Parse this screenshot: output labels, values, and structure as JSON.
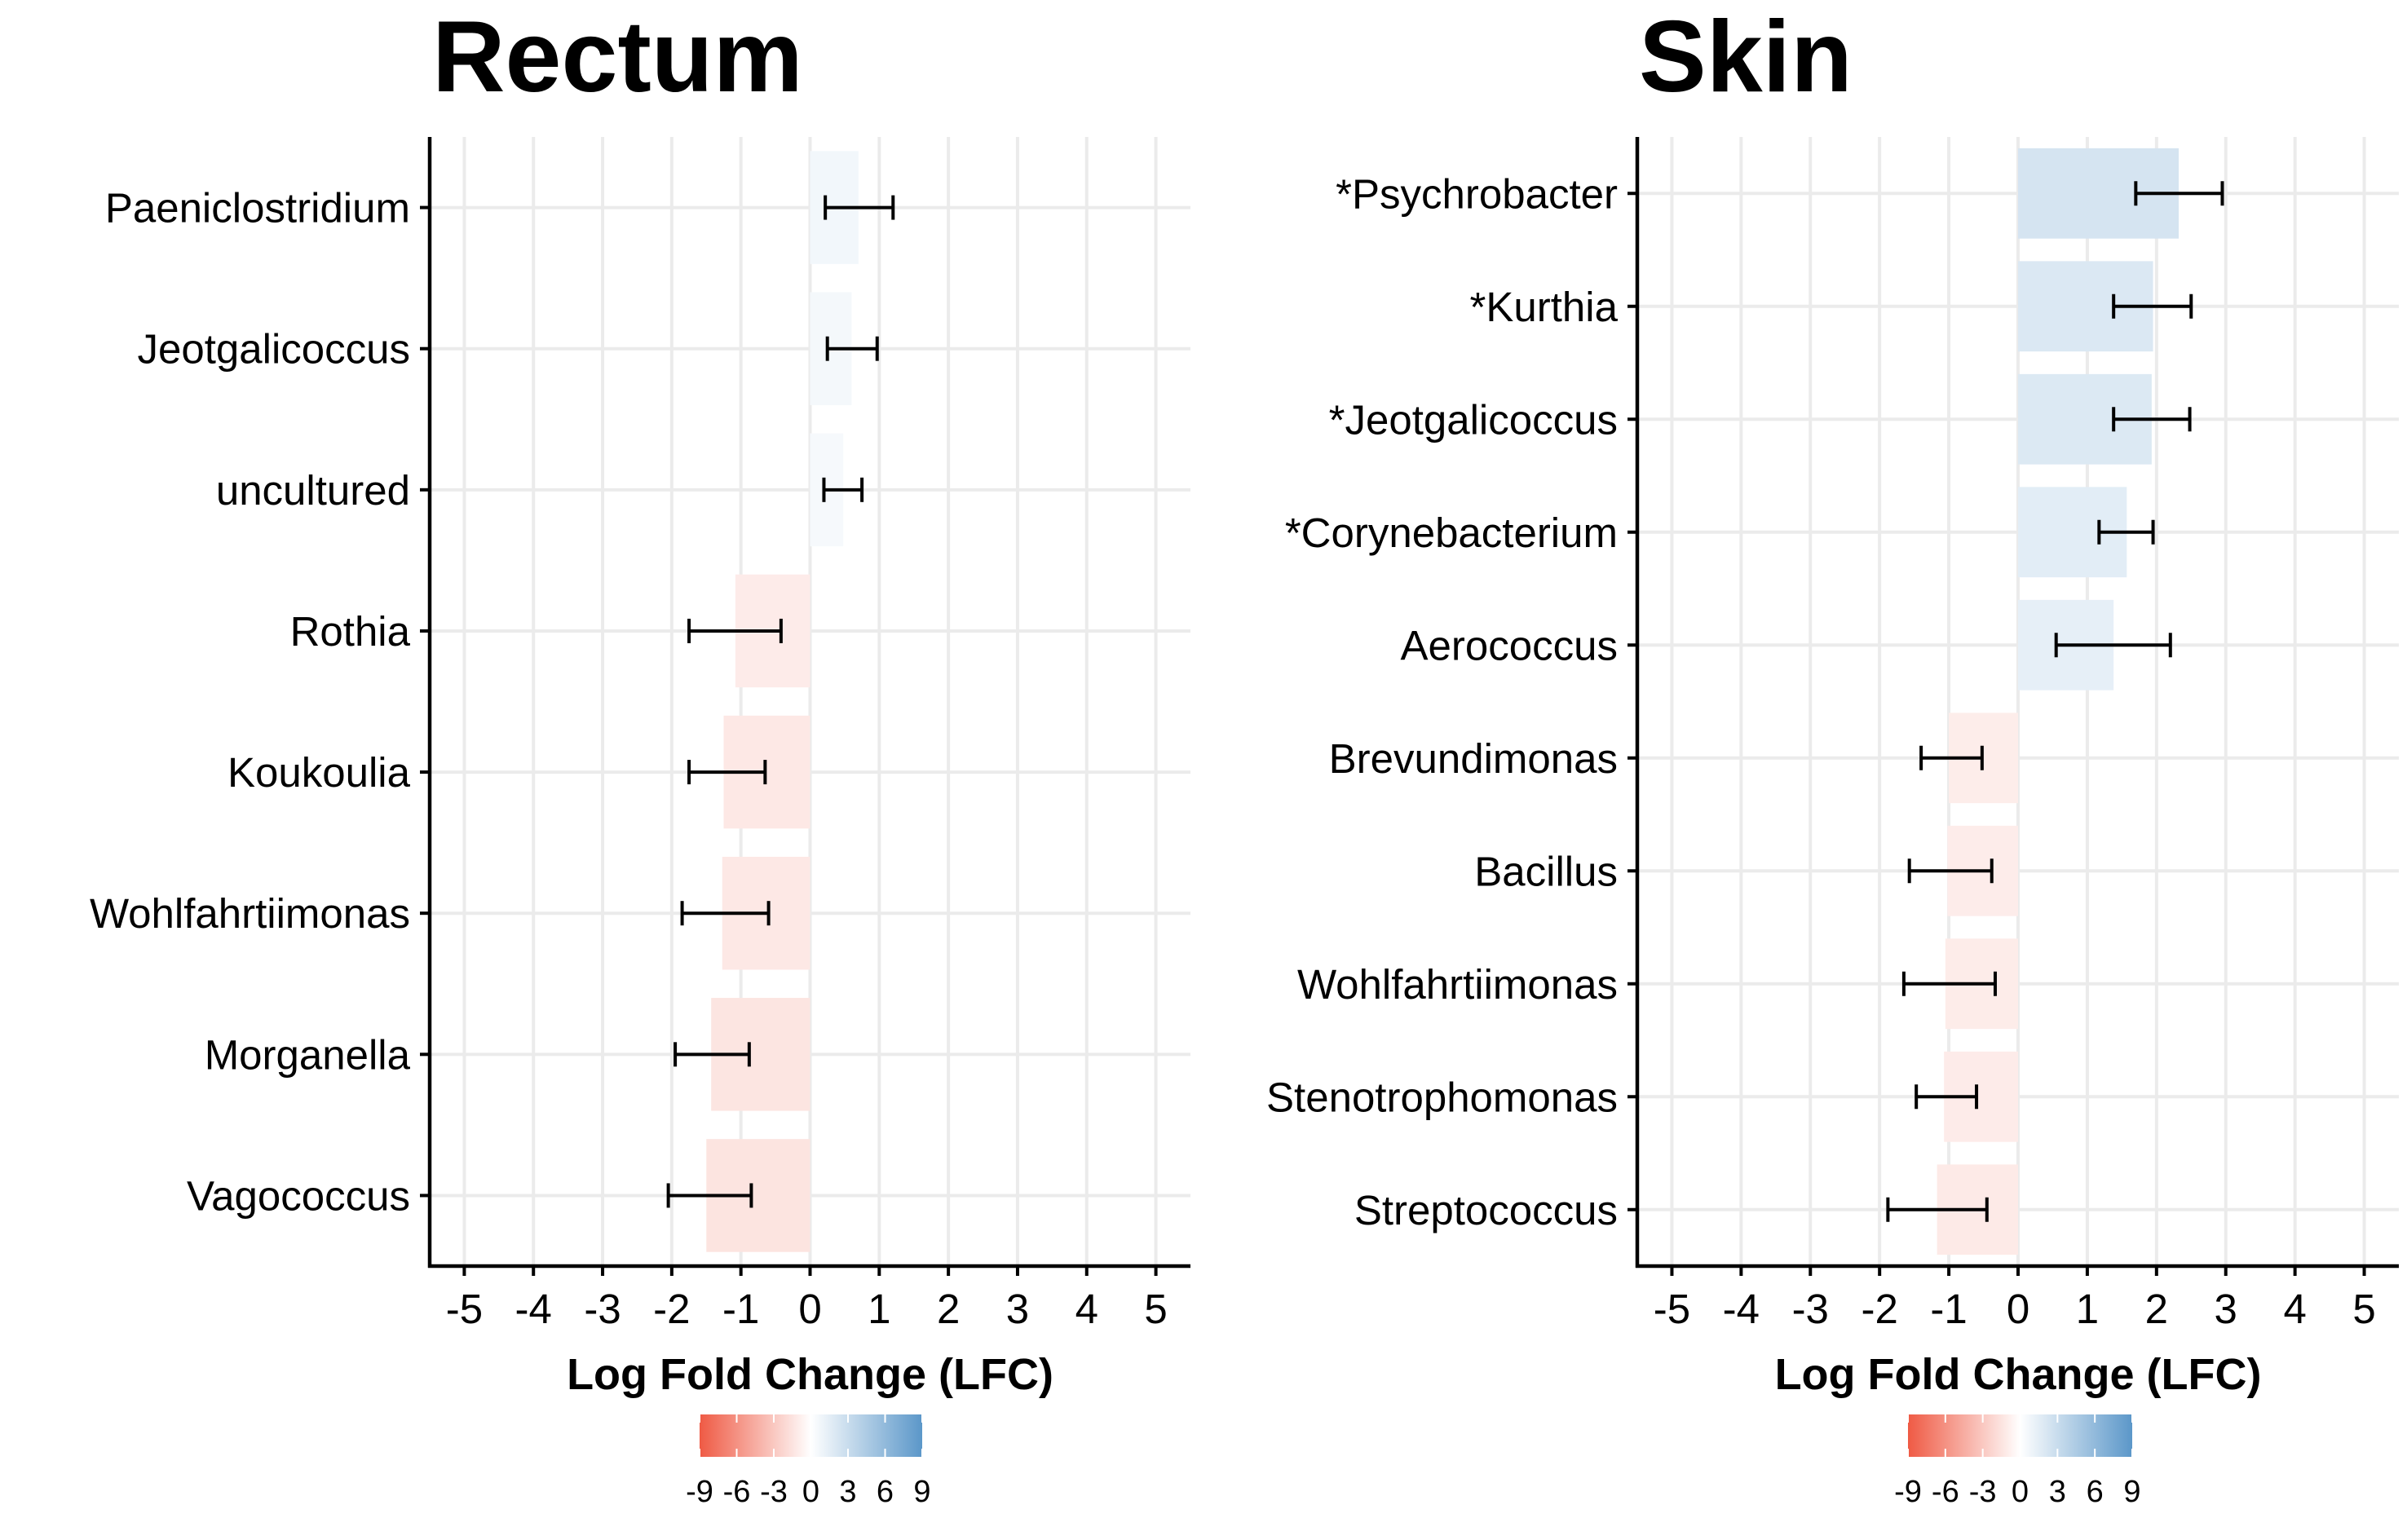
{
  "chart_data": [
    {
      "type": "bar",
      "title": "Rectum",
      "xlabel": "Log Fold Change (LFC)",
      "ylabel": "",
      "xlim": [
        -5.5,
        5.5
      ],
      "xticks": [
        "-5",
        "-4",
        "-3",
        "-2",
        "-1",
        "0",
        "1",
        "2",
        "3",
        "4",
        "5"
      ],
      "orientation": "horizontal",
      "grid": true,
      "categories": [
        "Paeniclostridium",
        "Jeotgalicoccus",
        "uncultured",
        "Rothia",
        "Koukoulia",
        "Wohlfahrtiimonas",
        "Morganella",
        "Vagococcus"
      ],
      "values": [
        0.7,
        0.6,
        0.48,
        -1.08,
        -1.25,
        -1.27,
        -1.43,
        -1.5
      ],
      "error_low": [
        0.22,
        0.25,
        0.2,
        -1.75,
        -1.75,
        -1.85,
        -1.95,
        -2.05
      ],
      "error_high": [
        1.2,
        0.97,
        0.75,
        -0.42,
        -0.65,
        -0.6,
        -0.88,
        -0.85
      ],
      "legend": {
        "type": "colorbar",
        "ticks": [
          "-9",
          "-6",
          "-3",
          "0",
          "3",
          "6",
          "9"
        ],
        "range": [
          -9,
          9
        ],
        "low_color": "#ef5a44",
        "mid_color": "#ffffff",
        "high_color": "#5b97c9",
        "position": "bottom"
      }
    },
    {
      "type": "bar",
      "title": "Skin",
      "xlabel": "Log Fold Change (LFC)",
      "ylabel": "",
      "xlim": [
        -5.5,
        5.5
      ],
      "xticks": [
        "-5",
        "-4",
        "-3",
        "-2",
        "-1",
        "0",
        "1",
        "2",
        "3",
        "4",
        "5"
      ],
      "orientation": "horizontal",
      "grid": true,
      "categories": [
        "*Psychrobacter",
        "*Kurthia",
        "*Jeotgalicoccus",
        "*Corynebacterium",
        "Aerococcus",
        "Brevundimonas",
        "Bacillus",
        "Wohlfahrtiimonas",
        "Stenotrophomonas",
        "Streptococcus"
      ],
      "values": [
        2.32,
        1.95,
        1.93,
        1.57,
        1.38,
        -1.0,
        -1.02,
        -1.05,
        -1.07,
        -1.17
      ],
      "error_low": [
        1.7,
        1.38,
        1.38,
        1.17,
        0.55,
        -1.4,
        -1.57,
        -1.65,
        -1.47,
        -1.88
      ],
      "error_high": [
        2.95,
        2.5,
        2.48,
        1.95,
        2.2,
        -0.52,
        -0.38,
        -0.33,
        -0.6,
        -0.45
      ],
      "legend": {
        "type": "colorbar",
        "ticks": [
          "-9",
          "-6",
          "-3",
          "0",
          "3",
          "6",
          "9"
        ],
        "range": [
          -9,
          9
        ],
        "low_color": "#ef5a44",
        "mid_color": "#ffffff",
        "high_color": "#5b97c9",
        "position": "bottom"
      }
    }
  ]
}
